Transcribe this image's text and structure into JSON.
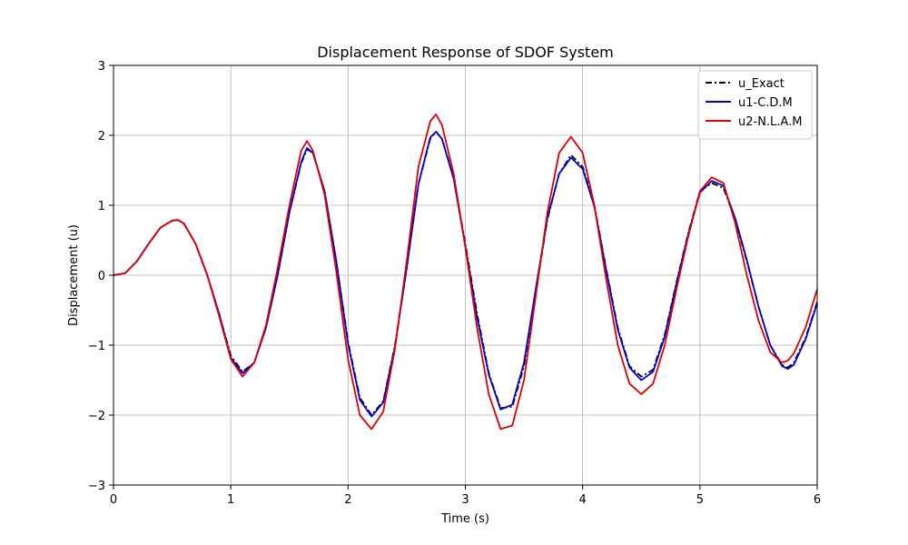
{
  "chart_data": {
    "type": "line",
    "title": "Displacement Response of SDOF System",
    "xlabel": "Time (s)",
    "ylabel": "Displacement (u)",
    "xlim": [
      0,
      6
    ],
    "ylim": [
      -3,
      3
    ],
    "xticks": [
      0,
      1,
      2,
      3,
      4,
      5,
      6
    ],
    "yticks": [
      -3,
      -2,
      -1,
      0,
      1,
      2,
      3
    ],
    "xtick_labels": [
      "0",
      "1",
      "2",
      "3",
      "4",
      "5",
      "6"
    ],
    "ytick_labels": [
      "−3",
      "−2",
      "−1",
      "0",
      "1",
      "2",
      "3"
    ],
    "grid": true,
    "legend_position": "top-right",
    "series": [
      {
        "name": "u_Exact",
        "color": "#000000",
        "style": "dashdot",
        "x": [
          0,
          0.1,
          0.2,
          0.3,
          0.4,
          0.5,
          0.55,
          0.6,
          0.7,
          0.8,
          0.9,
          1.0,
          1.1,
          1.2,
          1.3,
          1.4,
          1.5,
          1.6,
          1.65,
          1.7,
          1.8,
          1.9,
          2.0,
          2.1,
          2.2,
          2.3,
          2.4,
          2.5,
          2.6,
          2.7,
          2.75,
          2.8,
          2.9,
          3.0,
          3.1,
          3.2,
          3.3,
          3.4,
          3.5,
          3.6,
          3.7,
          3.8,
          3.9,
          4.0,
          4.1,
          4.2,
          4.3,
          4.4,
          4.5,
          4.6,
          4.7,
          4.8,
          4.9,
          5.0,
          5.1,
          5.2,
          5.3,
          5.4,
          5.5,
          5.6,
          5.7,
          5.75,
          5.8,
          5.9,
          6.0
        ],
        "y": [
          0,
          0.03,
          0.2,
          0.45,
          0.68,
          0.78,
          0.79,
          0.74,
          0.45,
          0.0,
          -0.55,
          -1.15,
          -1.38,
          -1.25,
          -0.75,
          0.0,
          0.9,
          1.6,
          1.8,
          1.75,
          1.2,
          0.2,
          -0.95,
          -1.75,
          -2.0,
          -1.8,
          -1.0,
          0.1,
          1.3,
          1.95,
          2.05,
          1.95,
          1.4,
          0.45,
          -0.55,
          -1.4,
          -1.9,
          -1.88,
          -1.3,
          -0.25,
          0.8,
          1.45,
          1.72,
          1.55,
          1.0,
          0.1,
          -0.75,
          -1.3,
          -1.45,
          -1.35,
          -0.85,
          -0.1,
          0.6,
          1.2,
          1.32,
          1.25,
          0.8,
          0.2,
          -0.45,
          -1.0,
          -1.28,
          -1.32,
          -1.25,
          -0.9,
          -0.38
        ]
      },
      {
        "name": "u1-C.D.M",
        "color": "#0000cc",
        "style": "solid",
        "x": [
          0,
          0.1,
          0.2,
          0.3,
          0.4,
          0.5,
          0.55,
          0.6,
          0.7,
          0.8,
          0.9,
          1.0,
          1.1,
          1.2,
          1.3,
          1.4,
          1.5,
          1.6,
          1.65,
          1.7,
          1.8,
          1.9,
          2.0,
          2.1,
          2.2,
          2.3,
          2.4,
          2.5,
          2.6,
          2.7,
          2.75,
          2.8,
          2.9,
          3.0,
          3.1,
          3.2,
          3.3,
          3.4,
          3.5,
          3.6,
          3.7,
          3.8,
          3.9,
          4.0,
          4.1,
          4.2,
          4.3,
          4.4,
          4.5,
          4.6,
          4.7,
          4.8,
          4.9,
          5.0,
          5.1,
          5.2,
          5.3,
          5.4,
          5.5,
          5.6,
          5.7,
          5.75,
          5.8,
          5.9,
          6.0
        ],
        "y": [
          0,
          0.03,
          0.2,
          0.45,
          0.68,
          0.78,
          0.79,
          0.74,
          0.45,
          0.0,
          -0.55,
          -1.18,
          -1.4,
          -1.25,
          -0.75,
          0.0,
          0.9,
          1.62,
          1.82,
          1.75,
          1.2,
          0.2,
          -0.98,
          -1.78,
          -2.02,
          -1.82,
          -1.02,
          0.1,
          1.3,
          1.97,
          2.05,
          1.95,
          1.38,
          0.42,
          -0.6,
          -1.42,
          -1.92,
          -1.85,
          -1.25,
          -0.2,
          0.82,
          1.45,
          1.68,
          1.52,
          0.98,
          0.08,
          -0.78,
          -1.32,
          -1.5,
          -1.38,
          -0.88,
          -0.12,
          0.58,
          1.18,
          1.35,
          1.28,
          0.82,
          0.22,
          -0.45,
          -1.0,
          -1.3,
          -1.34,
          -1.28,
          -0.92,
          -0.4
        ]
      },
      {
        "name": "u2-N.L.A.M",
        "color": "#dd0000",
        "style": "solid",
        "x": [
          0,
          0.1,
          0.2,
          0.3,
          0.4,
          0.5,
          0.55,
          0.6,
          0.7,
          0.8,
          0.9,
          1.0,
          1.1,
          1.2,
          1.3,
          1.4,
          1.5,
          1.6,
          1.65,
          1.7,
          1.8,
          1.9,
          2.0,
          2.1,
          2.2,
          2.3,
          2.4,
          2.5,
          2.6,
          2.7,
          2.75,
          2.8,
          2.9,
          3.0,
          3.1,
          3.2,
          3.3,
          3.4,
          3.5,
          3.6,
          3.7,
          3.8,
          3.9,
          4.0,
          4.1,
          4.2,
          4.3,
          4.4,
          4.5,
          4.6,
          4.7,
          4.8,
          4.9,
          5.0,
          5.1,
          5.2,
          5.3,
          5.4,
          5.5,
          5.6,
          5.7,
          5.75,
          5.8,
          5.9,
          6.0
        ],
        "y": [
          0,
          0.03,
          0.2,
          0.45,
          0.68,
          0.78,
          0.79,
          0.74,
          0.45,
          0.0,
          -0.58,
          -1.2,
          -1.45,
          -1.25,
          -0.72,
          0.1,
          1.0,
          1.78,
          1.92,
          1.78,
          1.15,
          0.05,
          -1.2,
          -2.0,
          -2.2,
          -1.95,
          -1.05,
          0.2,
          1.55,
          2.2,
          2.3,
          2.15,
          1.45,
          0.4,
          -0.75,
          -1.7,
          -2.2,
          -2.15,
          -1.5,
          -0.3,
          0.9,
          1.75,
          1.98,
          1.75,
          1.0,
          -0.05,
          -1.0,
          -1.55,
          -1.7,
          -1.55,
          -1.0,
          -0.2,
          0.55,
          1.2,
          1.4,
          1.32,
          0.75,
          0.0,
          -0.65,
          -1.1,
          -1.25,
          -1.22,
          -1.12,
          -0.75,
          -0.2
        ]
      }
    ]
  }
}
